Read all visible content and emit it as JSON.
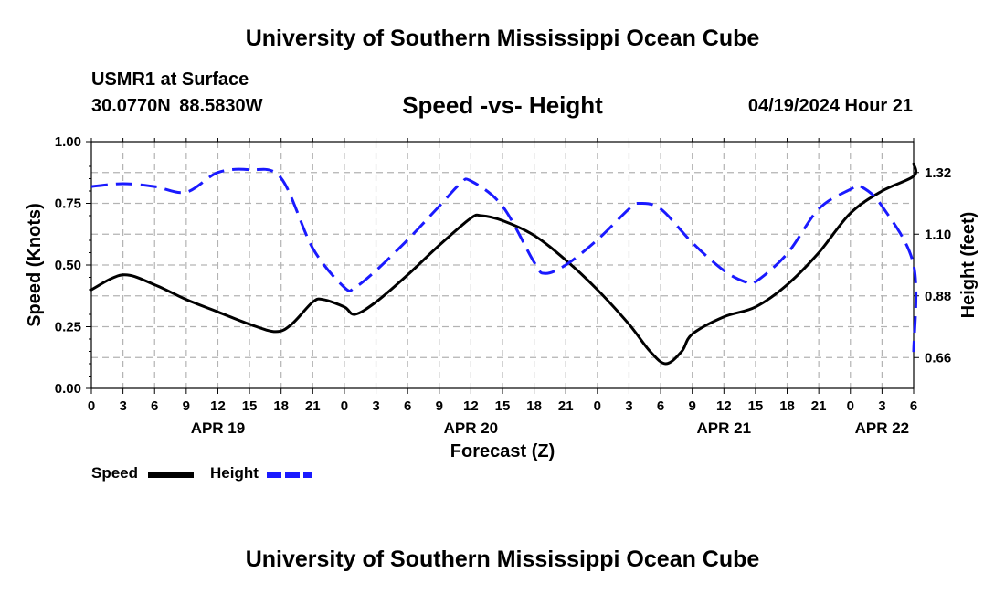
{
  "header": {
    "title": "University of Southern Mississippi Ocean Cube",
    "station": "USMR1 at Surface",
    "coordinates": "30.0770N  88.5830W",
    "subtitle": "Speed -vs- Height",
    "timestamp": "04/19/2024 Hour 21"
  },
  "footer": {
    "title": "University of Southern Mississippi Ocean Cube"
  },
  "legend": {
    "speed_label": "Speed",
    "height_label": "Height",
    "speed_color": "#000000",
    "height_color": "#1a1aff"
  },
  "chart_data": {
    "type": "line",
    "title": "Speed -vs- Height",
    "xlabel": "Forecast (Z)",
    "ylabel": "Speed (Knots)",
    "ylabel_right": "Height (feet)",
    "grid": true,
    "x_range_hours": [
      0,
      78
    ],
    "x_hours": [
      0,
      3,
      6,
      9,
      12,
      15,
      18,
      21,
      24,
      27,
      30,
      33,
      36,
      39,
      42,
      45,
      48,
      51,
      54,
      57,
      60,
      63,
      66,
      69,
      72,
      75,
      78
    ],
    "x_tick_labels": [
      "0",
      "3",
      "6",
      "9",
      "12",
      "15",
      "18",
      "21",
      "0",
      "3",
      "6",
      "9",
      "12",
      "15",
      "18",
      "21",
      "0",
      "3",
      "6",
      "9",
      "12",
      "15",
      "18",
      "21",
      "0",
      "3",
      "6"
    ],
    "date_labels": [
      {
        "label": "APR 19",
        "hour": 12
      },
      {
        "label": "APR 20",
        "hour": 36
      },
      {
        "label": "APR 21",
        "hour": 60
      },
      {
        "label": "APR 22",
        "hour": 75
      }
    ],
    "y_left": {
      "range": [
        0,
        1
      ],
      "ticks": [
        0,
        0.25,
        0.5,
        0.75,
        1.0
      ],
      "tick_labels": [
        "0.00",
        "0.25",
        "0.50",
        "0.75",
        "1.00"
      ]
    },
    "y_right": {
      "range": [
        0.55,
        1.43
      ],
      "ticks": [
        0.66,
        0.88,
        1.1,
        1.32
      ],
      "tick_labels": [
        "0.66",
        "0.88",
        "1.10",
        "1.32"
      ]
    },
    "series": [
      {
        "name": "Speed",
        "axis": "left",
        "color": "#000000",
        "style": "solid",
        "points": [
          [
            0,
            0.4
          ],
          [
            3,
            0.46
          ],
          [
            6,
            0.42
          ],
          [
            9,
            0.36
          ],
          [
            12,
            0.31
          ],
          [
            15,
            0.26
          ],
          [
            17.5,
            0.23
          ],
          [
            19,
            0.26
          ],
          [
            21,
            0.35
          ],
          [
            22,
            0.36
          ],
          [
            24,
            0.33
          ],
          [
            25,
            0.3
          ],
          [
            27,
            0.35
          ],
          [
            30,
            0.46
          ],
          [
            33,
            0.58
          ],
          [
            36,
            0.69
          ],
          [
            37,
            0.7
          ],
          [
            39,
            0.68
          ],
          [
            42,
            0.62
          ],
          [
            45,
            0.52
          ],
          [
            48,
            0.4
          ],
          [
            51,
            0.26
          ],
          [
            53,
            0.15
          ],
          [
            54.5,
            0.1
          ],
          [
            56,
            0.15
          ],
          [
            57,
            0.22
          ],
          [
            60,
            0.29
          ],
          [
            63,
            0.33
          ],
          [
            66,
            0.42
          ],
          [
            69,
            0.55
          ],
          [
            72,
            0.71
          ],
          [
            75,
            0.8
          ],
          [
            78,
            0.86
          ],
          [
            78,
            0.91
          ]
        ]
      },
      {
        "name": "Height",
        "axis": "right",
        "color": "#1a1aff",
        "style": "dashed",
        "points": [
          [
            0,
            1.27
          ],
          [
            3,
            1.28
          ],
          [
            6,
            1.27
          ],
          [
            9,
            1.25
          ],
          [
            12,
            1.32
          ],
          [
            15,
            1.33
          ],
          [
            18,
            1.3
          ],
          [
            21,
            1.05
          ],
          [
            24,
            0.91
          ],
          [
            25,
            0.91
          ],
          [
            27,
            0.97
          ],
          [
            30,
            1.08
          ],
          [
            33,
            1.2
          ],
          [
            35,
            1.28
          ],
          [
            36,
            1.29
          ],
          [
            39,
            1.2
          ],
          [
            42,
            1.0
          ],
          [
            43,
            0.96
          ],
          [
            45,
            0.99
          ],
          [
            48,
            1.08
          ],
          [
            51,
            1.19
          ],
          [
            52,
            1.21
          ],
          [
            54,
            1.19
          ],
          [
            57,
            1.07
          ],
          [
            60,
            0.97
          ],
          [
            62,
            0.93
          ],
          [
            63,
            0.93
          ],
          [
            66,
            1.03
          ],
          [
            69,
            1.19
          ],
          [
            72,
            1.26
          ],
          [
            73,
            1.27
          ],
          [
            75,
            1.2
          ],
          [
            78,
            0.99
          ],
          [
            78,
            0.68
          ]
        ]
      }
    ]
  }
}
